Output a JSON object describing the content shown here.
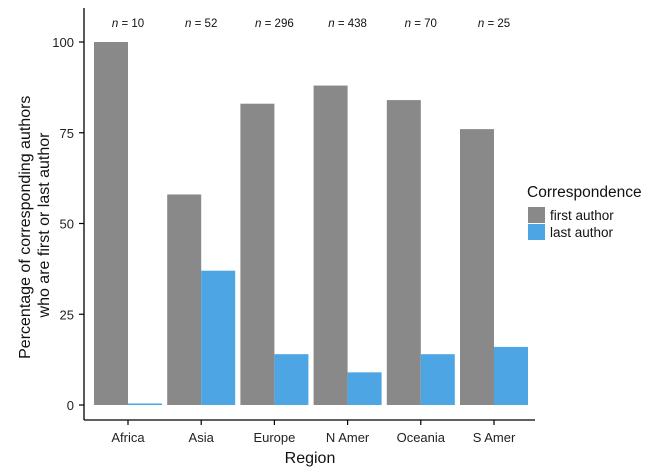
{
  "chart_data": {
    "type": "bar",
    "title": "",
    "xlabel": "Region",
    "ylabel_lines": [
      "Percentage of corresponding authors",
      "who are first or last author"
    ],
    "ylim": [
      0,
      100
    ],
    "yticks": [
      0,
      25,
      50,
      75,
      100
    ],
    "categories": [
      "Africa",
      "Asia",
      "Europe",
      "N Amer",
      "Oceania",
      "S Amer"
    ],
    "annotations": [
      {
        "prefix": "n",
        "text": " = 10"
      },
      {
        "prefix": "n",
        "text": " = 52"
      },
      {
        "prefix": "n",
        "text": " = 296"
      },
      {
        "prefix": "n",
        "text": " = 438"
      },
      {
        "prefix": "n",
        "text": " = 70"
      },
      {
        "prefix": "n",
        "text": " = 25"
      }
    ],
    "series": [
      {
        "name": "first author",
        "color": "#898989",
        "values": [
          100,
          58,
          83,
          88,
          84,
          76
        ]
      },
      {
        "name": "last author",
        "color": "#4da6e3",
        "values": [
          0,
          37,
          14,
          9,
          14,
          16
        ]
      }
    ],
    "legend": {
      "title": "Correspondence",
      "position": "right"
    },
    "grid": false
  }
}
